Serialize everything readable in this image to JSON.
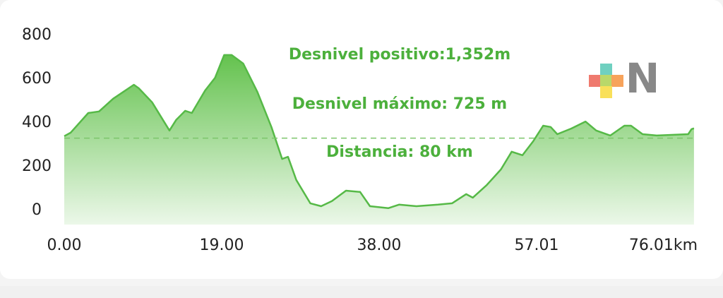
{
  "chart_data": {
    "type": "area",
    "annotations": [
      "Desnivel positivo:1,352m",
      "Desnivel máximo: 725 m",
      "Distancia: 80 km"
    ],
    "x": [
      0,
      0.77,
      2.9,
      4.2,
      5.9,
      8.4,
      9.0,
      10.6,
      12.7,
      13.5,
      14.6,
      15.4,
      17.0,
      18.2,
      19.3,
      20.2,
      21.6,
      23.3,
      25.0,
      26.3,
      27.0,
      28.0,
      29.7,
      31.0,
      32.3,
      34.0,
      35.7,
      36.9,
      39.1,
      40.4,
      42.5,
      45.1,
      46.8,
      48.5,
      49.3,
      51.0,
      52.7,
      54.0,
      55.3,
      56.6,
      57.8,
      58.7,
      59.5,
      61.2,
      62.9,
      64.2,
      65.9,
      67.6,
      68.4,
      69.8,
      71.5,
      75.3,
      75.7,
      76.0
    ],
    "series": [
      {
        "color": "#56b947",
        "values": [
          339,
          355,
          445,
          452,
          510,
          574,
          558,
          494,
          365,
          413,
          455,
          445,
          548,
          606,
          710,
          710,
          671,
          542,
          381,
          235,
          245,
          139,
          32,
          19,
          42,
          90,
          84,
          19,
          10,
          26,
          19,
          26,
          32,
          74,
          58,
          116,
          187,
          268,
          252,
          316,
          387,
          381,
          348,
          374,
          406,
          365,
          342,
          387,
          387,
          348,
          342,
          348,
          371,
          375
        ]
      }
    ],
    "reference_line": 330,
    "xlim": [
      0,
      76.01
    ],
    "xticks": [
      {
        "value": 0,
        "label": "0.00"
      },
      {
        "value": 19,
        "label": "19.00"
      },
      {
        "value": 38,
        "label": "38.00"
      },
      {
        "value": 57.01,
        "label": "57.01"
      },
      {
        "value": 76.01,
        "label": "76.01km"
      }
    ],
    "ylim": [
      -65,
      800
    ],
    "yticks": [
      0,
      200,
      400,
      600,
      800
    ],
    "watermark": "N"
  }
}
